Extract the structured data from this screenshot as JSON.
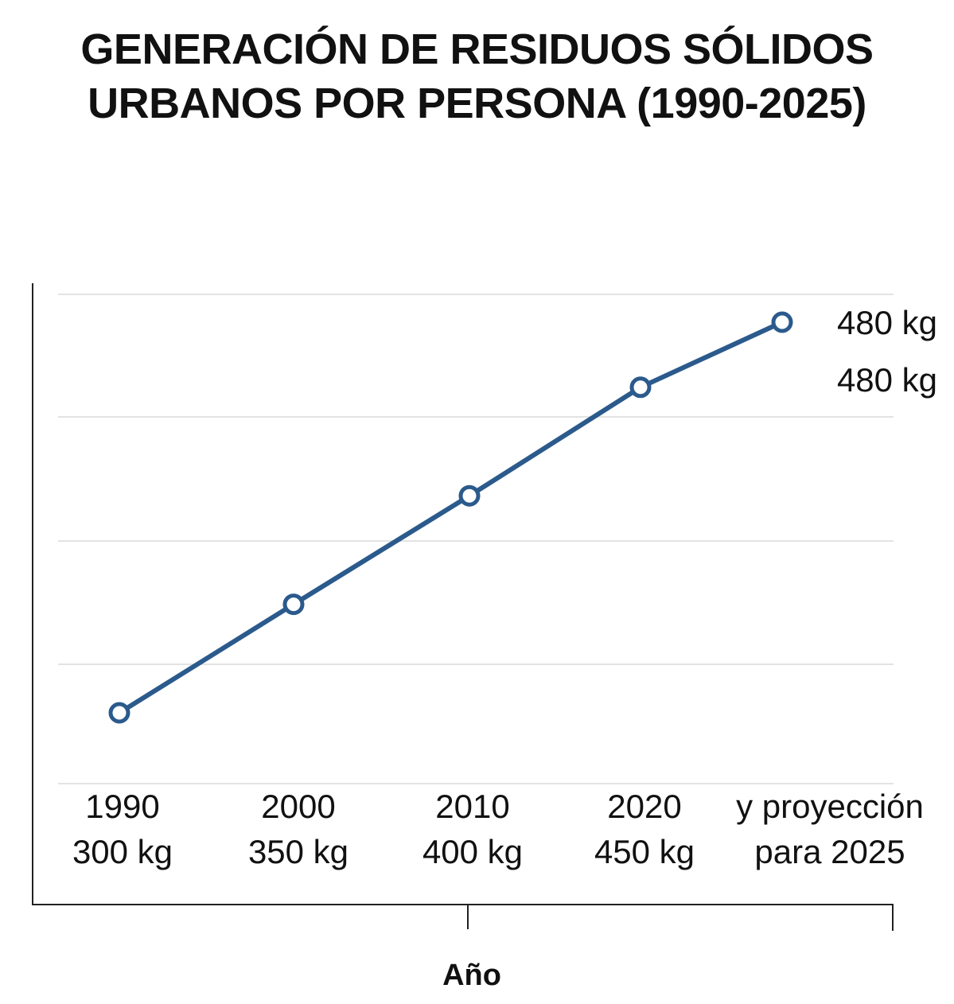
{
  "chart_data": {
    "type": "line",
    "title_lines": [
      "GENERACIÓN DE RESIDUOS SÓLIDOS",
      "URBANOS POR PERSONA (1990-2025)"
    ],
    "xlabel": "Año",
    "ylabel": "",
    "grid": true,
    "x_labels": [
      [
        "1990",
        "300 kg"
      ],
      [
        "2000",
        "350 kg"
      ],
      [
        "2010",
        "400 kg"
      ],
      [
        "2020",
        "450 kg"
      ],
      [
        "y proyección",
        "para 2025"
      ]
    ],
    "series": [
      {
        "values": [
          300,
          350,
          400,
          450,
          480
        ]
      }
    ],
    "annotations": [
      "480 kg",
      "480 kg"
    ],
    "colors": {
      "line": "#2b5a8c",
      "marker_fill": "#ffffff",
      "grid": "#e3e3e3",
      "axis": "#222222"
    }
  }
}
